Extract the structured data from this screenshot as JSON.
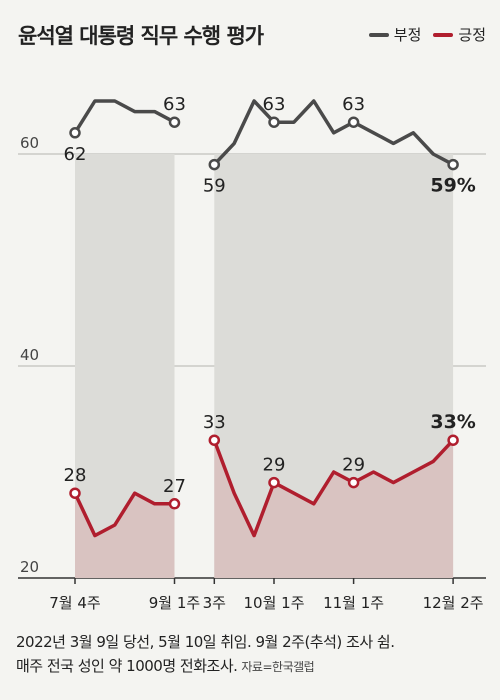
{
  "title": "윤석열 대통령 직무 수행 평가",
  "legend": [
    {
      "name": "부정",
      "color": "#4a4a4a"
    },
    {
      "name": "긍정",
      "color": "#b01e2e"
    }
  ],
  "chart_data": {
    "type": "line",
    "yticks": [
      60,
      40,
      20
    ],
    "ylim": [
      20,
      68
    ],
    "x_ticks": [
      "7월 4주",
      "9월 1주",
      "3주",
      "10월 1주",
      "11월 1주",
      "12월 2주"
    ],
    "x_tick_index": [
      0,
      5,
      7,
      10,
      14,
      19
    ],
    "gap_after_index": 5,
    "series": [
      {
        "name": "부정",
        "color": "#4a4a4a",
        "segments": [
          {
            "x": [
              0,
              1,
              2,
              3,
              4,
              5
            ],
            "y": [
              62,
              65,
              65,
              64,
              64,
              63
            ]
          },
          {
            "x": [
              7,
              8,
              9,
              10,
              11,
              12,
              13,
              14,
              15,
              16,
              17,
              18,
              19
            ],
            "y": [
              59,
              61,
              65,
              63,
              63,
              65,
              62,
              63,
              62,
              61,
              62,
              60,
              59
            ]
          }
        ],
        "labels": [
          {
            "i": 0,
            "text": "62"
          },
          {
            "i": 5,
            "text": "63"
          },
          {
            "i": 7,
            "text": "59"
          },
          {
            "i": 10,
            "text": "63"
          },
          {
            "i": 14,
            "text": "63"
          },
          {
            "i": 19,
            "text": "59%",
            "bold": true
          }
        ]
      },
      {
        "name": "긍정",
        "color": "#b01e2e",
        "segments": [
          {
            "x": [
              0,
              1,
              2,
              3,
              4,
              5
            ],
            "y": [
              28,
              24,
              25,
              28,
              27,
              27
            ]
          },
          {
            "x": [
              7,
              8,
              9,
              10,
              11,
              12,
              13,
              14,
              15,
              16,
              17,
              18,
              19
            ],
            "y": [
              33,
              28,
              24,
              29,
              28,
              27,
              30,
              29,
              30,
              29,
              30,
              31,
              33
            ]
          }
        ],
        "labels": [
          {
            "i": 0,
            "text": "28"
          },
          {
            "i": 5,
            "text": "27"
          },
          {
            "i": 7,
            "text": "33"
          },
          {
            "i": 10,
            "text": "29"
          },
          {
            "i": 14,
            "text": "29"
          },
          {
            "i": 19,
            "text": "33%",
            "bold": true
          }
        ]
      }
    ]
  },
  "footnote": {
    "line1": "2022년 3월 9일 당선, 5월 10일 취임. 9월 2주(추석) 조사 쉼.",
    "line2": "매주 전국 성인 약 1000명 전화조사.",
    "source": "자료=한국갤럽"
  }
}
